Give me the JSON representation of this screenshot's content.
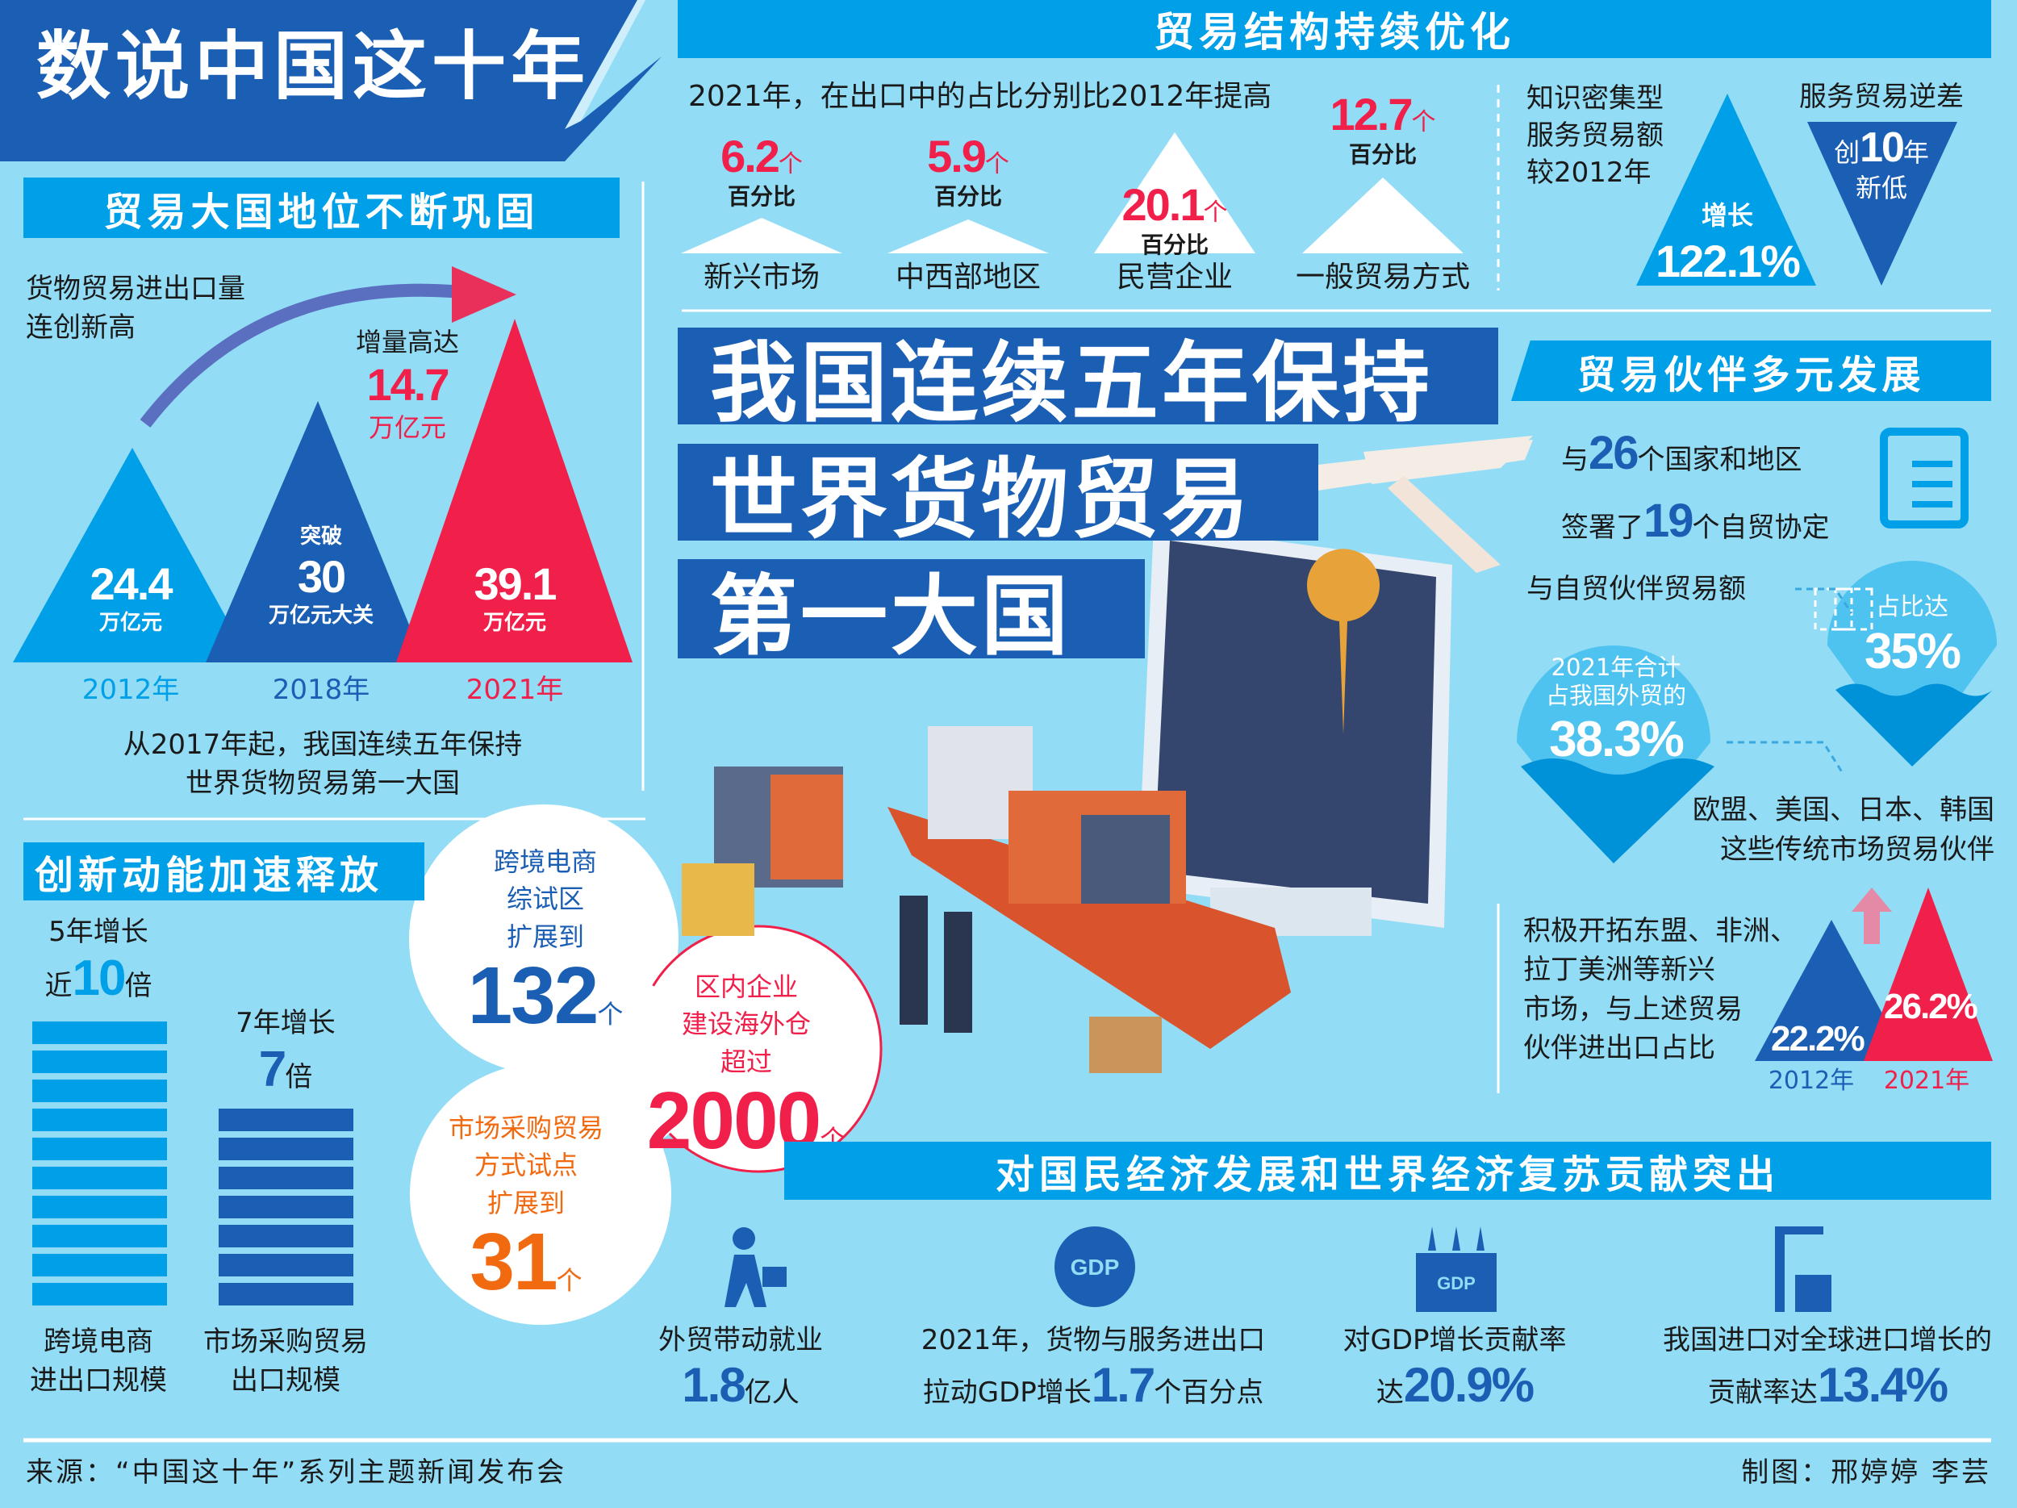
{
  "title": "数说中国这十年",
  "colors": {
    "background": "#93dcf5",
    "banner": "#00a0e9",
    "dark_blue": "#1b5fb4",
    "red": "#f0204a",
    "orange": "#f26a10"
  },
  "structure": {
    "heading": "贸易结构持续优化",
    "subtitle": "2021年，在出口中的占比分别比2012年提高",
    "items": [
      {
        "value": "6.2",
        "unit": "个",
        "sub": "百分比",
        "label": "新兴市场"
      },
      {
        "value": "5.9",
        "unit": "个",
        "sub": "百分比",
        "label": "中西部地区"
      },
      {
        "value": "20.1",
        "unit": "个",
        "sub": "百分比",
        "label": "民营企业"
      },
      {
        "value": "12.7",
        "unit": "个",
        "sub": "百分比",
        "label": "一般贸易方式"
      }
    ],
    "knowledge": {
      "lines": [
        "知识密集型",
        "服务贸易额",
        "较2012年"
      ],
      "label": "增长",
      "value": "122.1%"
    },
    "deficit": {
      "title": "服务贸易逆差",
      "pre": "创",
      "value": "10",
      "unit": "年",
      "post": "新低"
    }
  },
  "status": {
    "heading": "贸易大国地位不断巩固",
    "intro": [
      "货物贸易进出口量",
      "连创新高"
    ],
    "increase": {
      "label": "增量高达",
      "value": "14.7",
      "unit": "万亿元"
    },
    "bars": [
      {
        "year": "2012年",
        "pre": "",
        "value": "24.4",
        "unit": "万亿元"
      },
      {
        "year": "2018年",
        "pre": "突破",
        "value": "30",
        "unit": "万亿元大关"
      },
      {
        "year": "2021年",
        "pre": "",
        "value": "39.1",
        "unit": "万亿元"
      }
    ],
    "summary": [
      "从2017年起，我国连续五年保持",
      "世界货物贸易第一大国"
    ]
  },
  "headline": [
    "我国连续五年保持",
    "世界货物贸易",
    "第一大国"
  ],
  "innovation": {
    "heading": "创新动能加速释放",
    "ecommerce": {
      "top": "5年增长",
      "pre": "近",
      "value": "10",
      "unit": "倍",
      "label": [
        "跨境电商",
        "进出口规模"
      ],
      "bar_count": 10
    },
    "market": {
      "top": "7年增长",
      "value": "7",
      "unit": "倍",
      "label": [
        "市场采购贸易",
        "出口规模"
      ],
      "bar_count": 7
    },
    "cloud1": {
      "lines": [
        "跨境电商",
        "综试区",
        "扩展到"
      ],
      "value": "132",
      "unit": "个"
    },
    "cloud2": {
      "lines": [
        "区内企业",
        "建设海外仓",
        "超过"
      ],
      "value": "2000",
      "unit": "个"
    },
    "cloud3": {
      "lines": [
        "市场采购贸易",
        "方式试点",
        "扩展到"
      ],
      "value": "31",
      "unit": "个"
    }
  },
  "partners": {
    "heading": "贸易伙伴多元发展",
    "fta": {
      "p1": "与",
      "n1": "26",
      "s1": "个国家和地区",
      "p2": "签署了",
      "n2": "19",
      "s2": "个自贸协定"
    },
    "fta_trade": "与自贸伙伴贸易额",
    "drop35": {
      "label": "占比达",
      "value": "35%"
    },
    "drop38": {
      "lines": [
        "2021年合计",
        "占我国外贸的"
      ],
      "value": "38.3%"
    },
    "traditional": [
      "欧盟、美国、日本、韩国",
      "这些传统市场贸易伙伴"
    ],
    "emerging": [
      "积极开拓东盟、非洲、",
      "拉丁美洲等新兴",
      "市场，与上述贸易",
      "伙伴进出口占比"
    ],
    "compare": [
      {
        "year": "2012年",
        "value": "22.2%"
      },
      {
        "year": "2021年",
        "value": "26.2%"
      }
    ]
  },
  "contribution": {
    "heading": "对国民经济发展和世界经济复苏贡献突出",
    "items": [
      {
        "icon": "worker-briefcase-icon",
        "line1": "外贸带动就业",
        "pre": "",
        "value": "1.8",
        "unit": "亿人"
      },
      {
        "icon": "gdp-globe-icon",
        "line1": "2021年，货物与服务进出口",
        "pre": "拉动GDP增长",
        "value": "1.7",
        "unit": "个百分点"
      },
      {
        "icon": "gdp-growth-icon",
        "line1": "对GDP增长贡献率",
        "pre": "达",
        "value": "20.9%",
        "unit": ""
      },
      {
        "icon": "port-crane-icon",
        "line1": "我国进口对全球进口增长的",
        "pre": "贡献率达",
        "value": "13.4%",
        "unit": ""
      }
    ]
  },
  "footer": {
    "source": "来源：“中国这十年”系列主题新闻发布会",
    "credit": "制图：邢婷婷  李芸"
  }
}
